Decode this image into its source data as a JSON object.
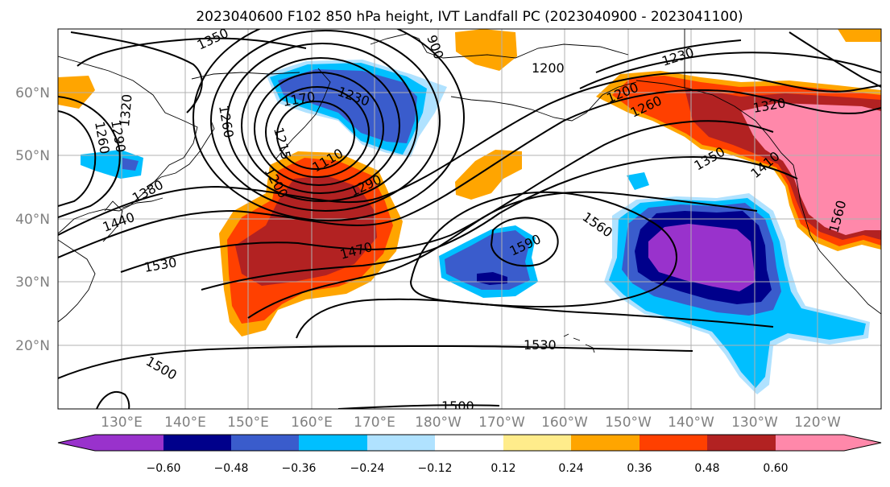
{
  "title": "2023040600 F102 850 hPa height, IVT Landfall PC (2023040900 - 2023041100)",
  "latitude_labels": [
    "60°N",
    "50°N",
    "40°N",
    "30°N",
    "20°N"
  ],
  "longitude_labels": [
    "130°E",
    "140°E",
    "150°E",
    "160°E",
    "170°E",
    "180°W",
    "170°W",
    "160°W",
    "150°W",
    "140°W",
    "130°W",
    "120°W"
  ],
  "colorbar": {
    "tick_labels": [
      "−0.60",
      "−0.48",
      "−0.36",
      "−0.24",
      "−0.12",
      "0.12",
      "0.24",
      "0.36",
      "0.48",
      "0.60"
    ],
    "colors": {
      "lt_neg060": "#9932cc",
      "neg060_neg048": "#00008b",
      "neg048_neg036": "#3a5ccc",
      "neg036_neg024": "#00bfff",
      "neg024_neg012": "#b0e2ff",
      "neg012_012": "#ffffff",
      "pos012_024": "#ffec8b",
      "pos024_036": "#ffa500",
      "pos036_048": "#ff4000",
      "pos048_060": "#b22222",
      "gt_060": "#ff88aa"
    }
  },
  "contour_labels": [
    "1350",
    "1260",
    "1290",
    "1320",
    "1260",
    "1230",
    "1170",
    "1200",
    "1110",
    "1215",
    "1290",
    "1380",
    "1440",
    "1470",
    "1530",
    "1500",
    "1590",
    "1560",
    "1530",
    "1500",
    "1200",
    "1230",
    "1260",
    "1320",
    "1350",
    "1410",
    "1560",
    "1200",
    "900"
  ]
}
